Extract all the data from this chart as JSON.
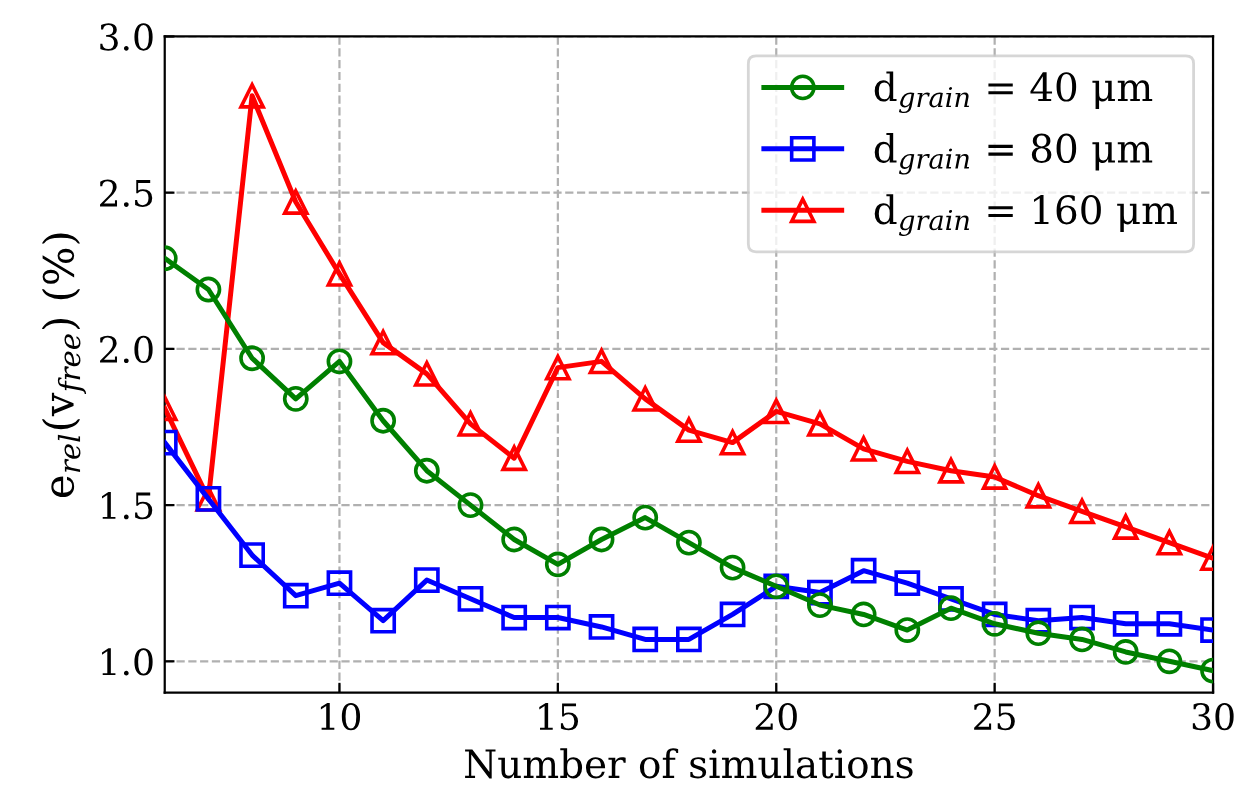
{
  "chart_data": {
    "type": "line",
    "xlabel": "Number of simulations",
    "ylabel": "e$_{rel}$(v$_{free}$) (%)",
    "x": [
      6,
      7,
      8,
      9,
      10,
      11,
      12,
      13,
      14,
      15,
      16,
      17,
      18,
      19,
      20,
      21,
      22,
      23,
      24,
      25,
      26,
      27,
      28,
      29,
      30
    ],
    "series": [
      {
        "name": "d$_{grain}$ = 40 μm",
        "color": "#008000",
        "marker": "circle",
        "values": [
          2.29,
          2.19,
          1.97,
          1.84,
          1.96,
          1.77,
          1.61,
          1.5,
          1.39,
          1.31,
          1.39,
          1.46,
          1.38,
          1.3,
          1.24,
          1.18,
          1.15,
          1.1,
          1.17,
          1.12,
          1.09,
          1.07,
          1.03,
          1.0,
          0.97
        ]
      },
      {
        "name": "d$_{grain}$ = 80 μm",
        "color": "#0000ff",
        "marker": "square",
        "values": [
          1.7,
          1.52,
          1.34,
          1.21,
          1.25,
          1.13,
          1.26,
          1.2,
          1.14,
          1.14,
          1.11,
          1.07,
          1.07,
          1.15,
          1.24,
          1.22,
          1.29,
          1.25,
          1.2,
          1.15,
          1.13,
          1.14,
          1.12,
          1.12,
          1.1
        ]
      },
      {
        "name": "d$_{grain}$ = 160 μm",
        "color": "#ff0000",
        "marker": "triangle",
        "values": [
          1.81,
          1.52,
          2.81,
          2.47,
          2.24,
          2.02,
          1.92,
          1.76,
          1.65,
          1.94,
          1.96,
          1.84,
          1.74,
          1.7,
          1.8,
          1.76,
          1.68,
          1.64,
          1.61,
          1.59,
          1.53,
          1.48,
          1.43,
          1.38,
          1.33
        ]
      }
    ],
    "xlim": [
      6,
      30
    ],
    "xticks": [
      10,
      15,
      20,
      25,
      30
    ],
    "ylim": [
      0.9,
      3.0
    ],
    "yticks": [
      {
        "value": 1.0,
        "label": "1.0"
      },
      {
        "value": 1.5,
        "label": "1.5"
      },
      {
        "value": 2.0,
        "label": "2.0"
      },
      {
        "value": 2.5,
        "label": "2.5"
      },
      {
        "value": 3.0,
        "label": "3.0"
      }
    ],
    "grid": true,
    "legend": "top right",
    "line_style": "solid"
  }
}
